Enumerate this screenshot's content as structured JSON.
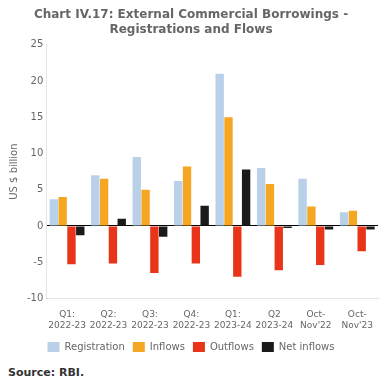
{
  "chart_data": {
    "type": "bar",
    "title": "Chart IV.17: External Commercial Borrowings -\nRegistrations and Flows",
    "y_label": "US $ billion",
    "annotations": [
      "Source: RBI."
    ],
    "categories": [
      "Q1:\n2022-23",
      "Q2:\n2022-23",
      "Q3:\n2022-23",
      "Q4:\n2022-23",
      "Q1:\n2023-24",
      "Q2\n2023-24",
      "Oct-\nNov'22",
      "Oct-\nNov'23"
    ],
    "series": [
      {
        "name": "Registration",
        "color": "#b8d0e8",
        "values": [
          3.7,
          7.0,
          9.5,
          6.2,
          21.0,
          8.0,
          6.5,
          1.9
        ]
      },
      {
        "name": "Inflows",
        "color": "#f5a623",
        "values": [
          4.0,
          6.5,
          5.0,
          8.2,
          15.0,
          5.8,
          2.7,
          2.1
        ]
      },
      {
        "name": "Outflows",
        "color": "#e8351a",
        "values": [
          -5.3,
          -5.2,
          -6.5,
          -5.2,
          -7.0,
          -6.1,
          -5.4,
          -3.5
        ]
      },
      {
        "name": "Net inflows",
        "color": "#1a1a1a",
        "values": [
          -1.3,
          1.0,
          -1.5,
          2.8,
          7.8,
          -0.3,
          -0.5,
          -0.5
        ]
      }
    ],
    "ylim": [
      -10,
      25
    ],
    "yticks": [
      -10,
      -5,
      0,
      5,
      10,
      15,
      20,
      25
    ],
    "grid": false,
    "legend": "bottom"
  }
}
